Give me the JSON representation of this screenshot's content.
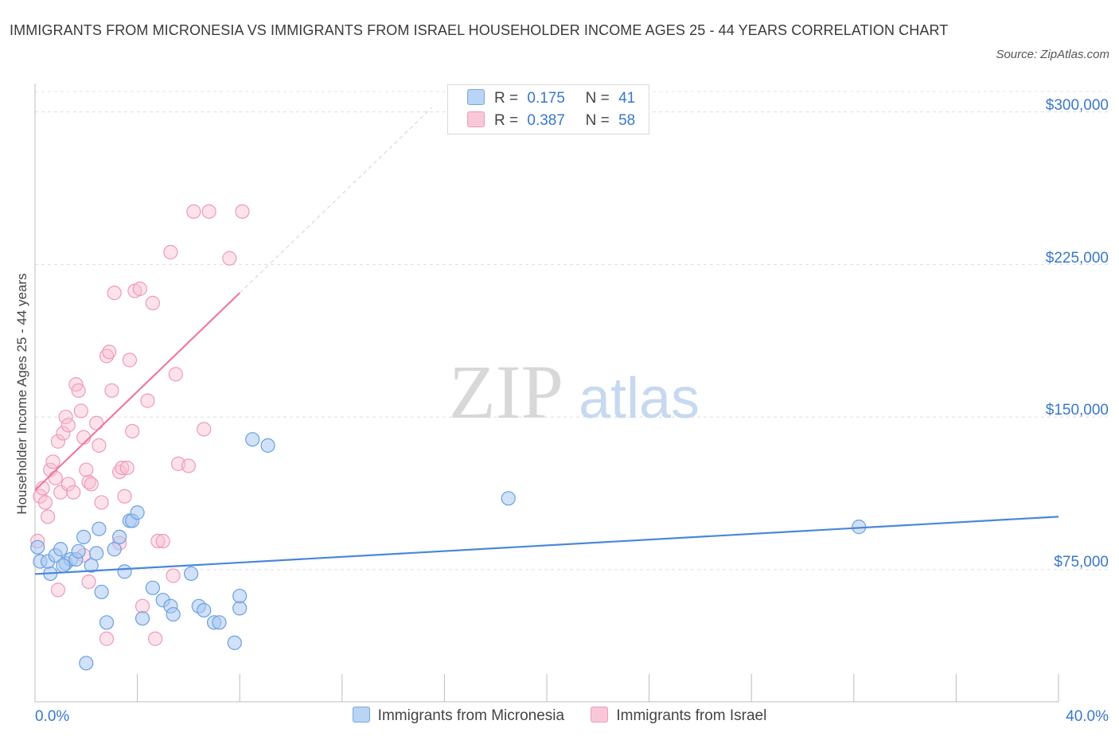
{
  "title": "IMMIGRANTS FROM MICRONESIA VS IMMIGRANTS FROM ISRAEL HOUSEHOLDER INCOME AGES 25 - 44 YEARS CORRELATION CHART",
  "source": "Source: ZipAtlas.com",
  "watermark": {
    "zip": "ZIP",
    "atlas": "atlas"
  },
  "colors": {
    "micronesia": "#4a87d8",
    "israel": "#ec7aa0",
    "axis_text": "#3a78c8"
  },
  "stats": {
    "r_label": "R =",
    "n_label": "N =",
    "micronesia": {
      "r": "0.175",
      "n": "41"
    },
    "israel": {
      "r": "0.387",
      "n": "58"
    }
  },
  "chart_data": {
    "type": "scatter",
    "ylabel": "Householder Income Ages 25 - 44 years",
    "x_tick_labels": [
      "0.0%",
      "40.0%"
    ],
    "y_tick_labels": [
      "$75,000",
      "$150,000",
      "$225,000",
      "$300,000"
    ],
    "xlim": [
      0,
      40
    ],
    "ylim": [
      10000,
      310000
    ],
    "y_ticks": [
      75000,
      150000,
      225000,
      300000
    ],
    "grid": true,
    "legend_position": "bottom",
    "series": [
      {
        "name": "Immigrants from Micronesia",
        "color": "#4a87d8",
        "trend": {
          "x0": 0,
          "y0": 72800,
          "x1": 40,
          "y1": 101000,
          "dashed_extension": false
        },
        "points": [
          [
            0.1,
            86000
          ],
          [
            0.2,
            79000
          ],
          [
            0.6,
            73000
          ],
          [
            0.5,
            79000
          ],
          [
            0.8,
            82000
          ],
          [
            1.0,
            85000
          ],
          [
            1.2,
            78000
          ],
          [
            1.4,
            80000
          ],
          [
            1.6,
            80000
          ],
          [
            1.7,
            84000
          ],
          [
            1.9,
            91000
          ],
          [
            2.2,
            77000
          ],
          [
            2.4,
            83000
          ],
          [
            2.5,
            95000
          ],
          [
            2.6,
            64000
          ],
          [
            2.8,
            49000
          ],
          [
            3.1,
            85000
          ],
          [
            3.3,
            91000
          ],
          [
            3.5,
            74000
          ],
          [
            3.7,
            99000
          ],
          [
            3.8,
            99000
          ],
          [
            4.0,
            103000
          ],
          [
            4.2,
            51000
          ],
          [
            4.6,
            66000
          ],
          [
            5.0,
            60000
          ],
          [
            5.3,
            57000
          ],
          [
            5.4,
            53000
          ],
          [
            6.1,
            73000
          ],
          [
            6.4,
            57000
          ],
          [
            6.6,
            55000
          ],
          [
            7.0,
            49000
          ],
          [
            7.2,
            49000
          ],
          [
            7.8,
            39000
          ],
          [
            8.0,
            56000
          ],
          [
            8.0,
            62000
          ],
          [
            8.5,
            139000
          ],
          [
            9.1,
            136000
          ],
          [
            18.5,
            110000
          ],
          [
            32.2,
            96000
          ],
          [
            2.0,
            29000
          ],
          [
            1.1,
            77000
          ]
        ]
      },
      {
        "name": "Immigrants from Israel",
        "color": "#ec7aa0",
        "trend": {
          "x0": 0,
          "y0": 114000,
          "x1": 8.0,
          "y1": 211000,
          "dashed_to": {
            "x": 15.5,
            "y": 302000
          }
        },
        "points": [
          [
            0.1,
            89000
          ],
          [
            0.2,
            111000
          ],
          [
            0.3,
            115000
          ],
          [
            0.4,
            108000
          ],
          [
            0.5,
            101000
          ],
          [
            0.6,
            124000
          ],
          [
            0.7,
            128000
          ],
          [
            0.8,
            120000
          ],
          [
            0.9,
            138000
          ],
          [
            1.0,
            113000
          ],
          [
            1.1,
            142000
          ],
          [
            1.2,
            150000
          ],
          [
            1.3,
            146000
          ],
          [
            1.3,
            117000
          ],
          [
            1.5,
            113000
          ],
          [
            1.6,
            166000
          ],
          [
            1.7,
            163000
          ],
          [
            1.8,
            153000
          ],
          [
            1.9,
            140000
          ],
          [
            2.0,
            124000
          ],
          [
            2.1,
            118000
          ],
          [
            2.2,
            117000
          ],
          [
            2.4,
            147000
          ],
          [
            2.5,
            136000
          ],
          [
            2.6,
            108000
          ],
          [
            2.8,
            180000
          ],
          [
            2.9,
            182000
          ],
          [
            3.0,
            163000
          ],
          [
            3.1,
            211000
          ],
          [
            3.3,
            123000
          ],
          [
            3.4,
            125000
          ],
          [
            3.5,
            111000
          ],
          [
            3.6,
            125000
          ],
          [
            3.7,
            178000
          ],
          [
            3.8,
            143000
          ],
          [
            3.9,
            212000
          ],
          [
            4.1,
            213000
          ],
          [
            4.4,
            158000
          ],
          [
            4.6,
            206000
          ],
          [
            4.8,
            89000
          ],
          [
            5.0,
            89000
          ],
          [
            5.3,
            231000
          ],
          [
            5.4,
            72000
          ],
          [
            5.5,
            171000
          ],
          [
            5.6,
            127000
          ],
          [
            6.0,
            126000
          ],
          [
            6.2,
            251000
          ],
          [
            6.6,
            144000
          ],
          [
            6.8,
            251000
          ],
          [
            7.6,
            228000
          ],
          [
            8.1,
            251000
          ],
          [
            2.1,
            69000
          ],
          [
            2.8,
            41000
          ],
          [
            4.2,
            57000
          ],
          [
            4.7,
            41000
          ],
          [
            1.9,
            82000
          ],
          [
            0.9,
            65000
          ],
          [
            3.3,
            88000
          ]
        ]
      }
    ]
  },
  "legend": {
    "micronesia": "Immigrants from Micronesia",
    "israel": "Immigrants from Israel"
  }
}
